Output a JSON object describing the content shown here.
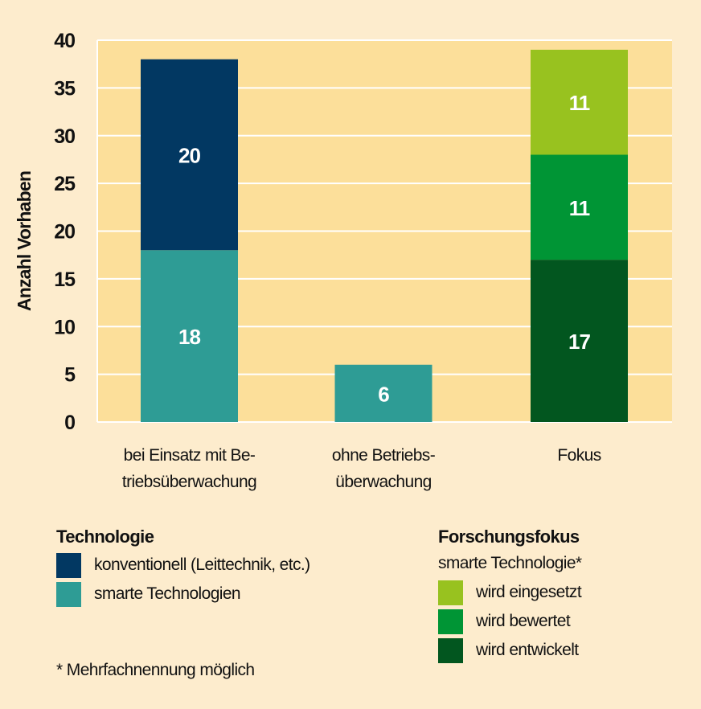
{
  "chart_data": {
    "type": "bar",
    "stacked": true,
    "ylabel": "Anzahl Vorhaben",
    "ylim": [
      0,
      40
    ],
    "yticks": [
      0,
      5,
      10,
      15,
      20,
      25,
      30,
      35,
      40
    ],
    "grid": true,
    "categories": [
      [
        "bei Einsatz mit Be-",
        "triebsüberwachung"
      ],
      [
        "ohne Betriebs-",
        "überwachung"
      ],
      [
        "Fokus"
      ]
    ],
    "series": [
      {
        "name": "smarte Technologien",
        "color": "#2e9c95",
        "values": [
          18,
          6,
          null
        ]
      },
      {
        "name": "konventionell (Leittechnik, etc.)",
        "color": "#023862",
        "values": [
          20,
          null,
          null
        ]
      },
      {
        "name": "wird entwickelt",
        "color": "#02561f",
        "values": [
          null,
          null,
          17
        ]
      },
      {
        "name": "wird bewertet",
        "color": "#009535",
        "values": [
          null,
          null,
          11
        ]
      },
      {
        "name": "wird eingesetzt",
        "color": "#98c21f",
        "values": [
          null,
          null,
          11
        ]
      }
    ],
    "colors": {
      "background": "#fdeccd",
      "plot_area": "#fcdf9a",
      "grid": "#ffffff"
    }
  },
  "legend_left": {
    "title": "Technologie",
    "items": [
      {
        "label": "konventionell (Leittechnik, etc.)",
        "color": "#023862"
      },
      {
        "label": "smarte Technologien",
        "color": "#2e9c95"
      }
    ]
  },
  "legend_right": {
    "title": "Forschungsfokus",
    "subtitle": "smarte Technologie*",
    "items": [
      {
        "label": "wird eingesetzt",
        "color": "#98c21f"
      },
      {
        "label": "wird bewertet",
        "color": "#009535"
      },
      {
        "label": "wird entwickelt",
        "color": "#02561f"
      }
    ]
  },
  "footnote": "* Mehrfachnennung möglich"
}
